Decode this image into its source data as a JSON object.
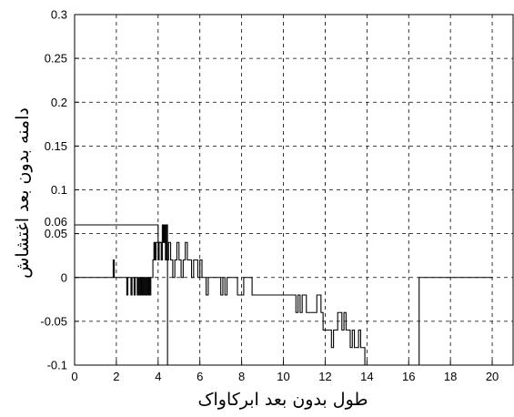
{
  "chart_data": {
    "type": "line",
    "title": "",
    "xlabel": "طول بدون بعد ابرکاواک",
    "ylabel": "دامنه بدون بعد اغتشاش",
    "xlim": [
      0,
      21
    ],
    "ylim": [
      -0.1,
      0.3
    ],
    "grid": true,
    "x_ticks": [
      0,
      2,
      4,
      6,
      8,
      10,
      12,
      14,
      16,
      18,
      20
    ],
    "x_tick_labels": [
      "0",
      "2",
      "4",
      "6",
      "8",
      "10",
      "12",
      "14",
      "16",
      "18",
      "20"
    ],
    "y_ticks": [
      -0.1,
      -0.05,
      0,
      0.05,
      0.1,
      0.15,
      0.2,
      0.25,
      0.3
    ],
    "y_tick_labels": [
      "-0.1",
      "-0.05",
      "0",
      "0.05",
      "0.1",
      "0.15",
      "0.2",
      "0.25",
      "0.3"
    ],
    "annotations": [
      {
        "text": "0.06",
        "y": 0.06
      }
    ],
    "series": [
      {
        "type": "step",
        "color": "#000000",
        "points": [
          [
            0,
            0.06
          ],
          [
            4.0,
            0.06
          ],
          [
            4.0,
            0.04
          ],
          [
            4.2,
            0.04
          ],
          [
            4.2,
            0.06
          ],
          [
            4.25,
            0.06
          ],
          [
            4.25,
            0.04
          ],
          [
            4.3,
            0.04
          ],
          [
            4.3,
            0.06
          ],
          [
            4.35,
            0.06
          ],
          [
            4.35,
            0.02
          ],
          [
            4.4,
            0.02
          ],
          [
            4.4,
            0.06
          ],
          [
            4.45,
            0.06
          ],
          [
            4.45,
            -0.1
          ],
          [
            4.55,
            -0.1
          ]
        ]
      },
      {
        "type": "step",
        "color": "#000000",
        "points": [
          [
            0,
            0
          ],
          [
            1.85,
            0
          ],
          [
            1.85,
            0.02
          ],
          [
            1.9,
            0.02
          ],
          [
            1.9,
            0
          ],
          [
            2.5,
            0
          ],
          [
            2.5,
            -0.02
          ],
          [
            2.55,
            -0.02
          ],
          [
            2.55,
            0
          ],
          [
            2.7,
            0
          ],
          [
            2.7,
            -0.02
          ],
          [
            2.75,
            -0.02
          ],
          [
            2.75,
            0
          ],
          [
            2.85,
            0
          ],
          [
            2.85,
            -0.02
          ],
          [
            2.9,
            -0.02
          ],
          [
            2.9,
            0
          ],
          [
            3.0,
            0
          ],
          [
            3.0,
            -0.02
          ],
          [
            3.05,
            -0.02
          ],
          [
            3.05,
            0
          ],
          [
            3.1,
            0
          ],
          [
            3.1,
            -0.02
          ],
          [
            3.15,
            -0.02
          ],
          [
            3.15,
            0
          ],
          [
            3.2,
            0
          ],
          [
            3.2,
            -0.02
          ],
          [
            3.25,
            -0.02
          ],
          [
            3.25,
            0
          ],
          [
            3.3,
            0
          ],
          [
            3.3,
            -0.02
          ],
          [
            3.35,
            -0.02
          ],
          [
            3.35,
            0
          ],
          [
            3.4,
            0
          ],
          [
            3.4,
            -0.02
          ],
          [
            3.45,
            -0.02
          ],
          [
            3.45,
            0
          ],
          [
            3.5,
            0
          ],
          [
            3.5,
            -0.02
          ],
          [
            3.55,
            -0.02
          ],
          [
            3.55,
            0
          ],
          [
            3.6,
            0
          ],
          [
            3.6,
            -0.02
          ],
          [
            3.65,
            -0.02
          ],
          [
            3.65,
            0
          ],
          [
            3.75,
            0
          ],
          [
            3.75,
            0.02
          ],
          [
            3.8,
            0.02
          ],
          [
            3.8,
            0.04
          ],
          [
            3.85,
            0.04
          ],
          [
            3.85,
            0.02
          ],
          [
            3.9,
            0.02
          ],
          [
            3.9,
            0.04
          ],
          [
            4.0,
            0.04
          ],
          [
            4.0,
            0.02
          ],
          [
            4.05,
            0.02
          ],
          [
            4.05,
            0.04
          ],
          [
            4.15,
            0.04
          ],
          [
            4.15,
            0.02
          ],
          [
            4.2,
            0.02
          ],
          [
            4.2,
            0.04
          ],
          [
            4.25,
            0.04
          ],
          [
            4.25,
            0.06
          ],
          [
            4.3,
            0.06
          ],
          [
            4.3,
            0.04
          ],
          [
            4.4,
            0.04
          ],
          [
            4.4,
            0.02
          ],
          [
            4.5,
            0.02
          ],
          [
            4.5,
            0.04
          ],
          [
            4.6,
            0.04
          ],
          [
            4.6,
            0.02
          ],
          [
            4.7,
            0.02
          ],
          [
            4.7,
            0.0
          ],
          [
            4.8,
            0.0
          ],
          [
            4.8,
            0.02
          ],
          [
            4.9,
            0.02
          ],
          [
            4.9,
            0.04
          ],
          [
            5.0,
            0.04
          ],
          [
            5.0,
            0.02
          ],
          [
            5.1,
            0.02
          ],
          [
            5.1,
            0.0
          ],
          [
            5.2,
            0.0
          ],
          [
            5.2,
            0.02
          ],
          [
            5.3,
            0.02
          ],
          [
            5.3,
            0.04
          ],
          [
            5.4,
            0.04
          ],
          [
            5.4,
            0.02
          ],
          [
            5.6,
            0.02
          ],
          [
            5.6,
            0.0
          ],
          [
            5.7,
            0.0
          ],
          [
            5.7,
            0.02
          ],
          [
            5.9,
            0.02
          ],
          [
            5.9,
            0.0
          ],
          [
            6.0,
            0.0
          ],
          [
            6.0,
            0.02
          ],
          [
            6.1,
            0.02
          ],
          [
            6.1,
            0.0
          ],
          [
            6.3,
            0.0
          ],
          [
            6.3,
            -0.02
          ],
          [
            6.4,
            -0.02
          ],
          [
            6.4,
            0.0
          ],
          [
            7.0,
            0.0
          ],
          [
            7.0,
            -0.02
          ],
          [
            7.1,
            -0.02
          ],
          [
            7.1,
            0.0
          ],
          [
            7.2,
            0.0
          ],
          [
            7.2,
            -0.02
          ],
          [
            7.3,
            -0.02
          ],
          [
            7.3,
            0.0
          ],
          [
            7.8,
            0.0
          ],
          [
            7.8,
            -0.02
          ],
          [
            8.1,
            -0.02
          ],
          [
            8.1,
            0.0
          ],
          [
            8.5,
            0.0
          ],
          [
            8.5,
            -0.02
          ],
          [
            10.6,
            -0.02
          ],
          [
            10.6,
            -0.04
          ],
          [
            10.7,
            -0.04
          ],
          [
            10.7,
            -0.02
          ],
          [
            10.8,
            -0.02
          ],
          [
            10.8,
            -0.04
          ],
          [
            10.9,
            -0.04
          ],
          [
            10.9,
            -0.02
          ],
          [
            11.1,
            -0.02
          ],
          [
            11.1,
            -0.04
          ],
          [
            11.6,
            -0.04
          ],
          [
            11.6,
            -0.02
          ],
          [
            11.8,
            -0.02
          ],
          [
            11.8,
            -0.04
          ],
          [
            11.9,
            -0.04
          ],
          [
            11.9,
            -0.06
          ],
          [
            12.3,
            -0.06
          ],
          [
            12.3,
            -0.08
          ],
          [
            12.4,
            -0.08
          ],
          [
            12.4,
            -0.06
          ],
          [
            12.6,
            -0.06
          ],
          [
            12.6,
            -0.04
          ],
          [
            12.8,
            -0.04
          ],
          [
            12.8,
            -0.06
          ],
          [
            12.9,
            -0.06
          ],
          [
            12.9,
            -0.04
          ],
          [
            13.0,
            -0.04
          ],
          [
            13.0,
            -0.06
          ],
          [
            13.2,
            -0.06
          ],
          [
            13.2,
            -0.08
          ],
          [
            13.3,
            -0.08
          ],
          [
            13.3,
            -0.06
          ],
          [
            13.4,
            -0.06
          ],
          [
            13.4,
            -0.08
          ],
          [
            13.6,
            -0.08
          ],
          [
            13.6,
            -0.06
          ],
          [
            13.7,
            -0.06
          ],
          [
            13.7,
            -0.08
          ],
          [
            13.9,
            -0.08
          ],
          [
            13.9,
            -0.1
          ],
          [
            14.0,
            -0.1
          ]
        ]
      },
      {
        "type": "step",
        "color": "#000000",
        "points": [
          [
            16.5,
            -0.1
          ],
          [
            16.5,
            0
          ],
          [
            20,
            0
          ]
        ]
      }
    ]
  }
}
